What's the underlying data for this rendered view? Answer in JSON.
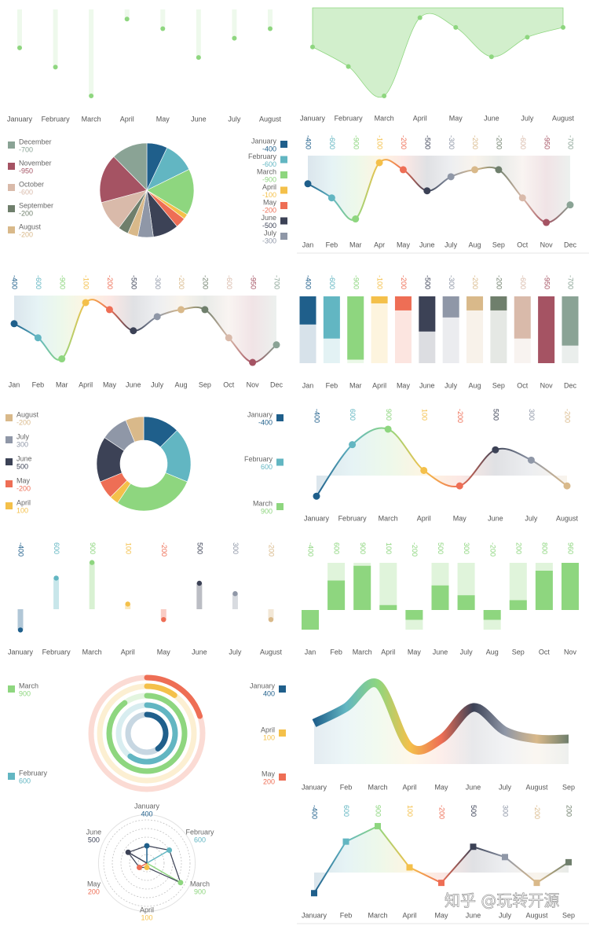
{
  "chart_data": [
    {
      "type": "lollipop",
      "categories": [
        "January",
        "February",
        "March",
        "April",
        "May",
        "June",
        "July",
        "August"
      ],
      "values": [
        400,
        600,
        900,
        100,
        200,
        500,
        300,
        200
      ],
      "color": "#8ed67f"
    },
    {
      "type": "area_hanging",
      "categories": [
        "January",
        "February",
        "March",
        "April",
        "May",
        "June",
        "July",
        "August"
      ],
      "values": [
        400,
        600,
        900,
        100,
        200,
        500,
        300,
        200
      ],
      "color": "#8ed67f"
    },
    {
      "type": "pie",
      "categories": [
        "January",
        "February",
        "March",
        "April",
        "May",
        "June",
        "July",
        "August",
        "September",
        "October",
        "November",
        "December"
      ],
      "values": [
        -400,
        -600,
        -900,
        -100,
        -200,
        -500,
        -300,
        -200,
        -200,
        -600,
        -950,
        -700
      ],
      "colors": [
        "#1f5f8b",
        "#62b6c2",
        "#8ed67f",
        "#f4c04a",
        "#ee6e55",
        "#3c4256",
        "#8f97a7",
        "#d9b98a",
        "#6f7f6c",
        "#d9baaa",
        "#a55363",
        "#8aa395"
      ]
    },
    {
      "type": "line",
      "categories": [
        "Jan",
        "Feb",
        "Mar",
        "Apr",
        "May",
        "June",
        "July",
        "Aug",
        "Sep",
        "Oct",
        "Nov",
        "Dec"
      ],
      "values": [
        -400,
        -600,
        -900,
        -100,
        -200,
        -500,
        -300,
        -200,
        -200,
        -600,
        -950,
        -700
      ],
      "colors": [
        "#1f5f8b",
        "#62b6c2",
        "#8ed67f",
        "#f4c04a",
        "#ee6e55",
        "#3c4256",
        "#8f97a7",
        "#d9b98a",
        "#6f7f6c",
        "#d9baaa",
        "#a55363",
        "#8aa395"
      ],
      "smooth": true,
      "marker": "circle"
    },
    {
      "type": "line",
      "categories": [
        "Jan",
        "Feb",
        "Mar",
        "April",
        "May",
        "June",
        "July",
        "Aug",
        "Sep",
        "Oct",
        "Nov",
        "Dec"
      ],
      "values": [
        -400,
        -600,
        -900,
        -100,
        -200,
        -500,
        -300,
        -200,
        -200,
        -600,
        -950,
        -700
      ],
      "colors": [
        "#1f5f8b",
        "#62b6c2",
        "#8ed67f",
        "#f4c04a",
        "#ee6e55",
        "#3c4256",
        "#8f97a7",
        "#d9b98a",
        "#6f7f6c",
        "#d9baaa",
        "#a55363",
        "#8aa395"
      ],
      "smooth": true,
      "marker": "circle"
    },
    {
      "type": "bar",
      "categories": [
        "Jan",
        "Feb",
        "Mar",
        "April",
        "May",
        "June",
        "July",
        "Aug",
        "Sep",
        "Oct",
        "Nov",
        "Dec"
      ],
      "values": [
        -400,
        -600,
        -900,
        -100,
        -200,
        -500,
        -300,
        -200,
        -200,
        -600,
        -950,
        -700
      ],
      "colors": [
        "#1f5f8b",
        "#62b6c2",
        "#8ed67f",
        "#f4c04a",
        "#ee6e55",
        "#3c4256",
        "#8f97a7",
        "#d9b98a",
        "#6f7f6c",
        "#d9baaa",
        "#a55363",
        "#8aa395"
      ]
    },
    {
      "type": "donut",
      "categories": [
        "January",
        "February",
        "March",
        "April",
        "May",
        "June",
        "July",
        "August"
      ],
      "values": [
        -400,
        600,
        900,
        100,
        -200,
        500,
        300,
        -200
      ],
      "colors": [
        "#1f5f8b",
        "#62b6c2",
        "#8ed67f",
        "#f4c04a",
        "#ee6e55",
        "#3c4256",
        "#8f97a7",
        "#d9b98a"
      ]
    },
    {
      "type": "line",
      "categories": [
        "January",
        "February",
        "March",
        "April",
        "May",
        "June",
        "July",
        "August"
      ],
      "values": [
        -400,
        600,
        900,
        100,
        -200,
        500,
        300,
        -200
      ],
      "colors": [
        "#1f5f8b",
        "#62b6c2",
        "#8ed67f",
        "#f4c04a",
        "#ee6e55",
        "#3c4256",
        "#8f97a7",
        "#d9b98a"
      ],
      "smooth": true,
      "marker": "circle"
    },
    {
      "type": "floating_bar",
      "categories": [
        "January",
        "February",
        "March",
        "April",
        "May",
        "June",
        "July",
        "August"
      ],
      "values": [
        -400,
        600,
        900,
        100,
        -200,
        500,
        300,
        -200
      ],
      "colors": [
        "#1f5f8b",
        "#62b6c2",
        "#8ed67f",
        "#f4c04a",
        "#ee6e55",
        "#3c4256",
        "#8f97a7",
        "#d9b98a"
      ]
    },
    {
      "type": "bar_signed",
      "categories": [
        "Jan",
        "Feb",
        "March",
        "April",
        "May",
        "June",
        "July",
        "Aug",
        "Sep",
        "Oct",
        "Nov"
      ],
      "values": [
        -400,
        600,
        900,
        100,
        -200,
        500,
        300,
        -200,
        200,
        800,
        960
      ],
      "color": "#8ed67f"
    },
    {
      "type": "rings",
      "categories": [
        "January",
        "February",
        "March",
        "April",
        "May"
      ],
      "values": [
        400,
        600,
        900,
        100,
        200
      ],
      "colors": [
        "#1f5f8b",
        "#62b6c2",
        "#8ed67f",
        "#f4c04a",
        "#ee6e55"
      ],
      "rlim": [
        0,
        1000
      ]
    },
    {
      "type": "thick_line",
      "categories": [
        "January",
        "Feb",
        "March",
        "April",
        "May",
        "June",
        "July",
        "August",
        "Sep"
      ],
      "values": [
        400,
        600,
        900,
        100,
        200,
        600,
        300,
        200,
        200
      ],
      "colors": [
        "#1f5f8b",
        "#62b6c2",
        "#8ed67f",
        "#f4c04a",
        "#ee6e55",
        "#3c4256",
        "#8f97a7",
        "#d9b98a",
        "#6f7f6c"
      ]
    },
    {
      "type": "radar",
      "categories": [
        "January",
        "February",
        "March",
        "April",
        "May",
        "June"
      ],
      "values": [
        400,
        600,
        900,
        100,
        200,
        500
      ],
      "colors": [
        "#1f5f8b",
        "#62b6c2",
        "#8ed67f",
        "#f4c04a",
        "#ee6e55",
        "#3c4256"
      ],
      "rlim": [
        0,
        1000
      ]
    },
    {
      "type": "line",
      "categories": [
        "January",
        "Feb",
        "March",
        "April",
        "May",
        "June",
        "July",
        "August",
        "Sep"
      ],
      "values": [
        -400,
        600,
        900,
        100,
        -200,
        500,
        300,
        -200,
        200
      ],
      "colors": [
        "#1f5f8b",
        "#62b6c2",
        "#8ed67f",
        "#f4c04a",
        "#ee6e55",
        "#3c4256",
        "#8f97a7",
        "#d9b98a",
        "#6f7f6c"
      ],
      "smooth": false,
      "marker": "square"
    }
  ],
  "watermark": "知乎 @玩转开源"
}
